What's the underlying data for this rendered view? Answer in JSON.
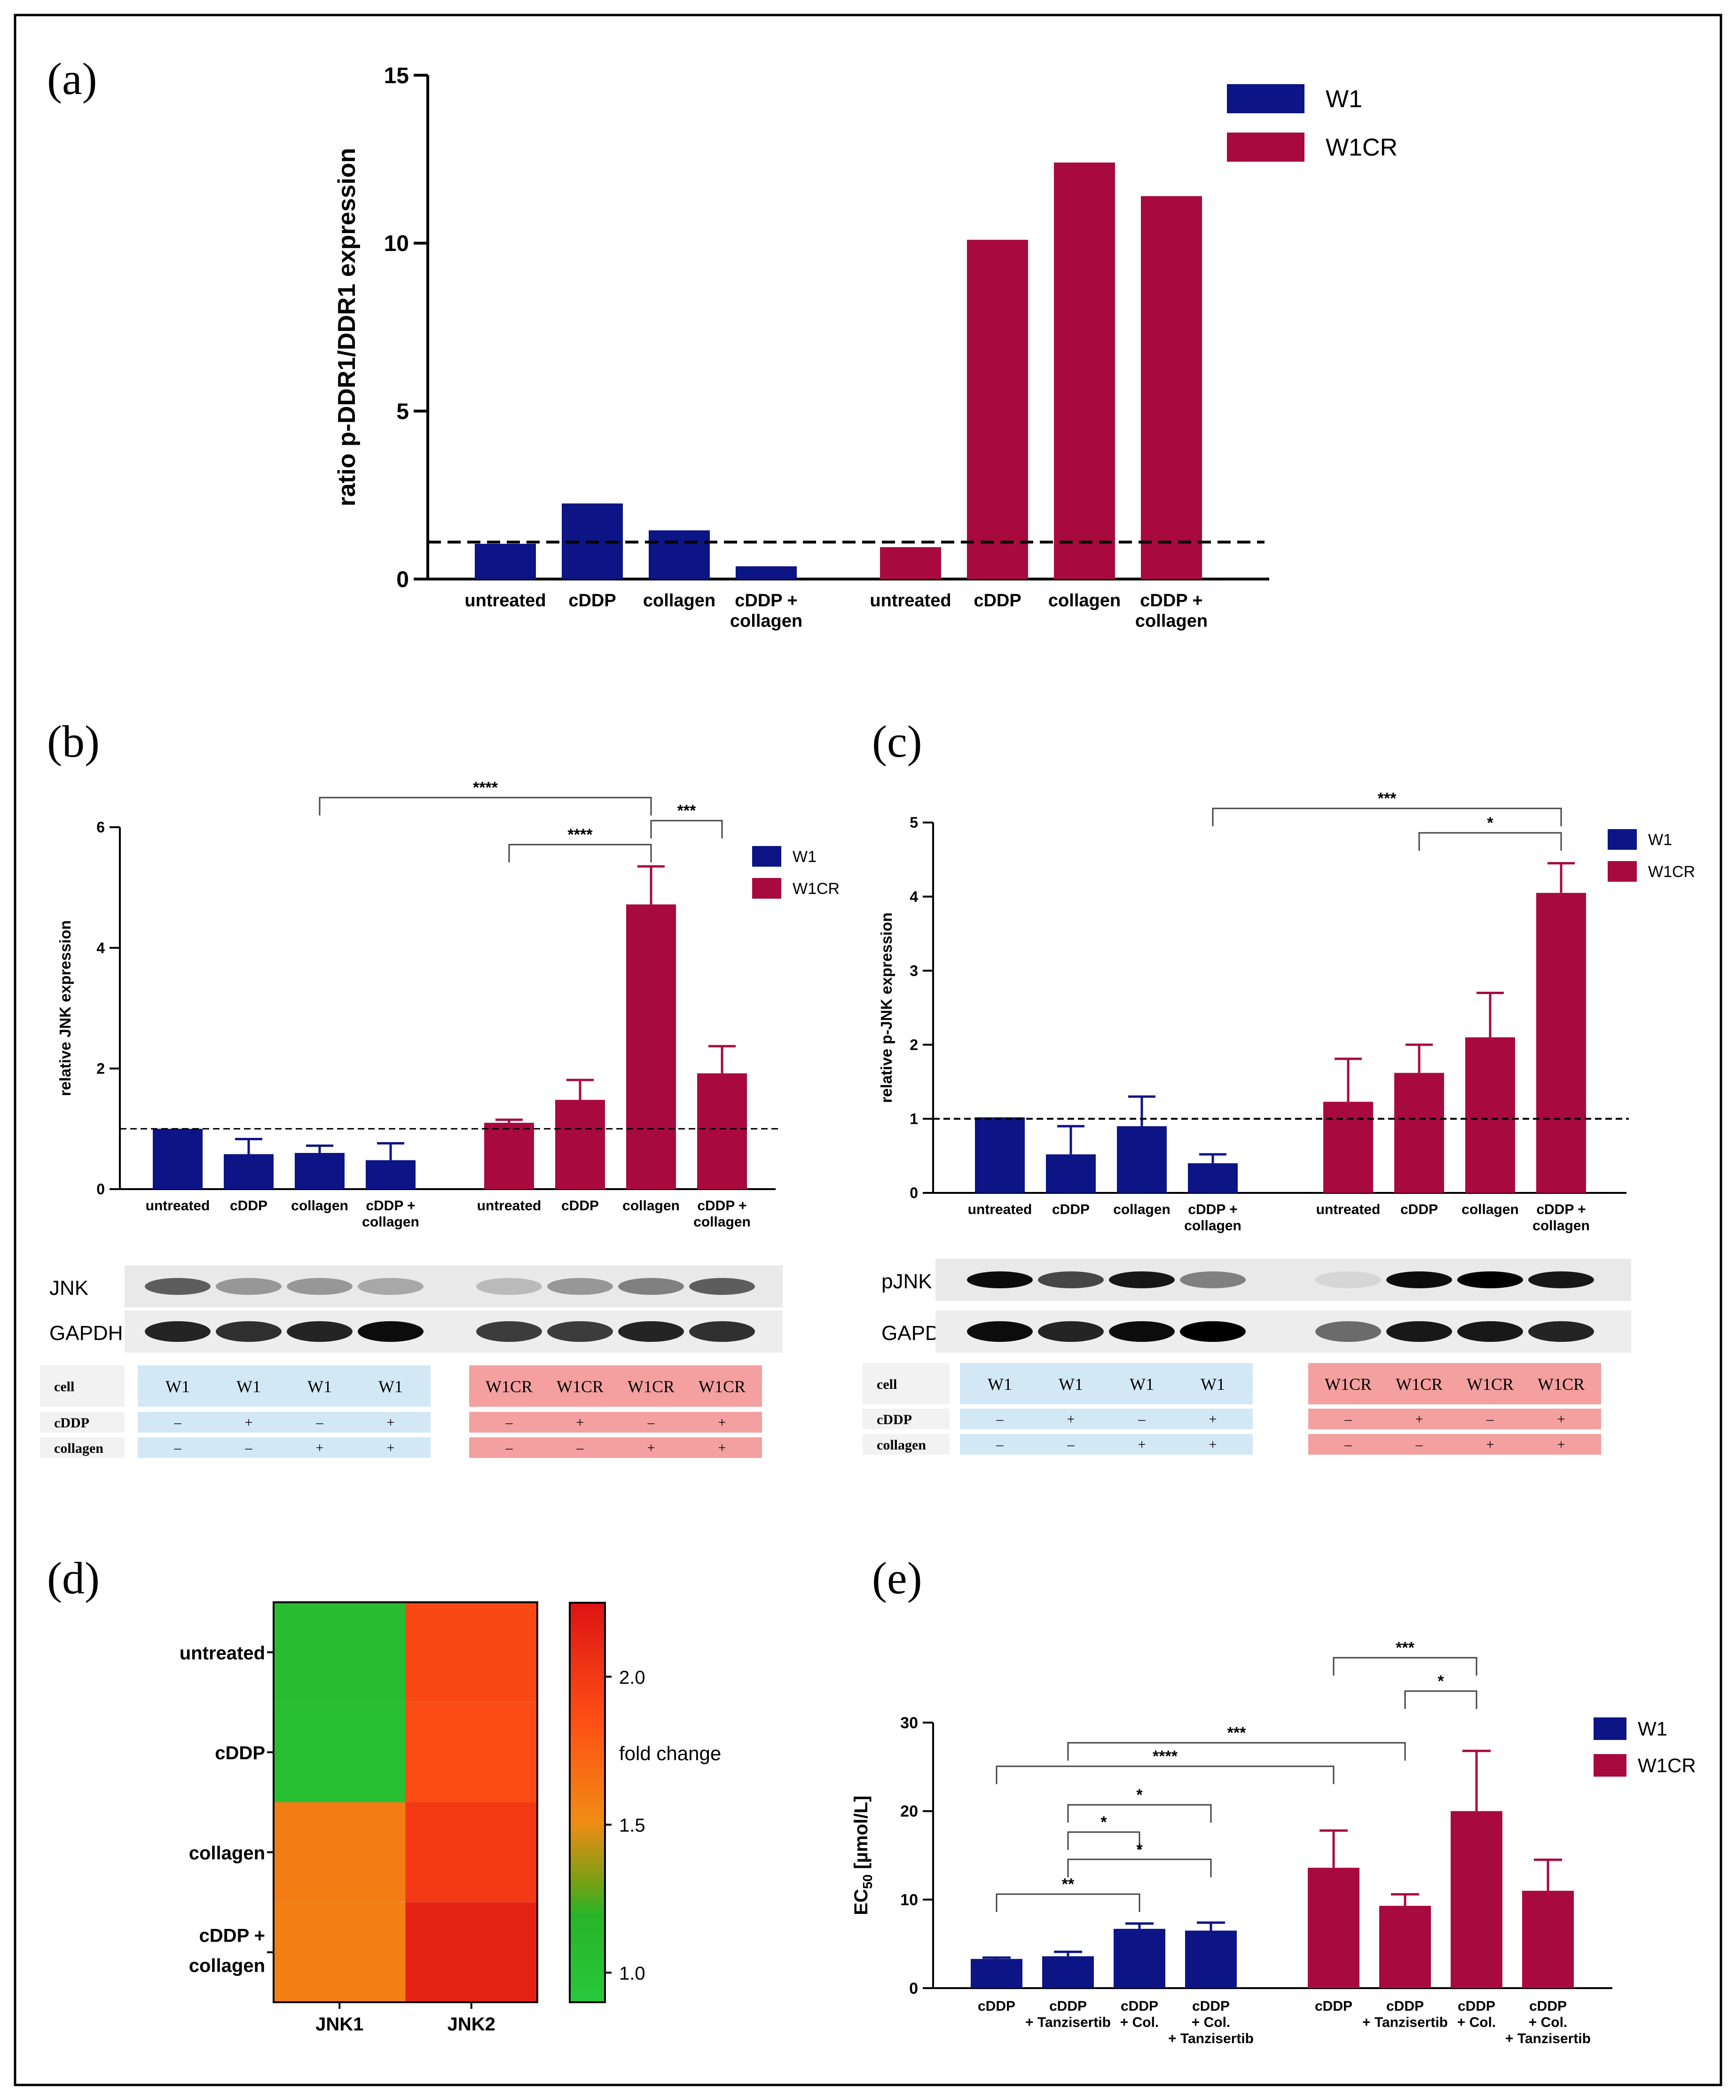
{
  "colors": {
    "w1": "#0d1486",
    "w1cr": "#a80a40",
    "w1_table": "#d3e8f5",
    "w1cr_table": "#f4a0a0",
    "header_table": "#f2f2f2"
  },
  "chart_data": [
    {
      "panel": "(a)",
      "type": "bar",
      "ylabel": "ratio p-DDR1/DDR1 expression",
      "ylim": [
        0,
        15
      ],
      "yticks": [
        "0",
        "5",
        "10",
        "15"
      ],
      "categories": [
        "untreated",
        "cDDP",
        "collagen",
        "cDDP + collagen"
      ],
      "series": [
        {
          "name": "W1",
          "values": [
            1.05,
            2.25,
            1.45,
            0.38
          ]
        },
        {
          "name": "W1CR",
          "values": [
            0.95,
            10.1,
            12.4,
            11.4
          ]
        }
      ],
      "reference_line": 1.1
    },
    {
      "panel": "(b)",
      "type": "bar",
      "ylabel": "relative JNK expression",
      "ylim": [
        0,
        6
      ],
      "yticks": [
        "0",
        "2",
        "4",
        "6"
      ],
      "categories": [
        "untreated",
        "cDDP",
        "collagen",
        "cDDP + collagen"
      ],
      "series": [
        {
          "name": "W1",
          "values": [
            1.0,
            0.58,
            0.6,
            0.48
          ],
          "errors": [
            0,
            0.25,
            0.12,
            0.28
          ]
        },
        {
          "name": "W1CR",
          "values": [
            1.1,
            1.48,
            4.72,
            1.92
          ],
          "errors": [
            0.05,
            0.33,
            0.63,
            0.45
          ]
        }
      ],
      "reference_line": 1.0,
      "significance": [
        "****",
        "****",
        "***"
      ],
      "blot": {
        "rows": [
          "JNK",
          "GAPDH"
        ],
        "table": {
          "row_labels": [
            "cell",
            "cDDP",
            "collagen"
          ],
          "cell": [
            "W1",
            "W1",
            "W1",
            "W1",
            "W1CR",
            "W1CR",
            "W1CR",
            "W1CR"
          ],
          "cddp": [
            "–",
            "+",
            "–",
            "+",
            "–",
            "+",
            "–",
            "+"
          ],
          "collagen": [
            "–",
            "–",
            "+",
            "+",
            "–",
            "–",
            "+",
            "+"
          ]
        }
      }
    },
    {
      "panel": "(c)",
      "type": "bar",
      "ylabel": "relative p-JNK expression",
      "ylim": [
        0,
        5
      ],
      "yticks": [
        "0",
        "1",
        "2",
        "3",
        "4",
        "5"
      ],
      "categories": [
        "untreated",
        "cDDP",
        "collagen",
        "cDDP + collagen"
      ],
      "series": [
        {
          "name": "W1",
          "values": [
            1.02,
            0.52,
            0.9,
            0.4
          ],
          "errors": [
            0,
            0.38,
            0.4,
            0.12
          ]
        },
        {
          "name": "W1CR",
          "values": [
            1.23,
            1.62,
            2.1,
            4.05
          ],
          "errors": [
            0.58,
            0.38,
            0.6,
            0.4
          ]
        }
      ],
      "reference_line": 1.0,
      "significance": [
        "***",
        "*"
      ],
      "blot": {
        "rows": [
          "pJNK",
          "GAPDH"
        ],
        "table": {
          "row_labels": [
            "cell",
            "cDDP",
            "collagen"
          ],
          "cell": [
            "W1",
            "W1",
            "W1",
            "W1",
            "W1CR",
            "W1CR",
            "W1CR",
            "W1CR"
          ],
          "cddp": [
            "–",
            "+",
            "–",
            "+",
            "–",
            "+",
            "–",
            "+"
          ],
          "collagen": [
            "–",
            "–",
            "+",
            "+",
            "–",
            "–",
            "+",
            "+"
          ]
        }
      }
    },
    {
      "panel": "(d)",
      "type": "heatmap",
      "rows": [
        "untreated",
        "cDDP",
        "collagen",
        "cDDP + collagen"
      ],
      "columns": [
        "JNK1",
        "JNK2"
      ],
      "values": [
        [
          1.08,
          1.9
        ],
        [
          1.05,
          1.88
        ],
        [
          1.6,
          2.0
        ],
        [
          1.58,
          2.15
        ]
      ],
      "colorbar_label": "fold change",
      "colorbar_ticks": [
        "1.0",
        "1.5",
        "2.0"
      ],
      "colorbar_range": [
        0.9,
        2.25
      ]
    },
    {
      "panel": "(e)",
      "type": "bar",
      "ylabel_main": "EC",
      "ylabel_sub": "50",
      "ylabel_unit": " [µmol/L]",
      "ylim": [
        0,
        30
      ],
      "yticks": [
        "0",
        "10",
        "20",
        "30"
      ],
      "categories": [
        [
          "cDDP"
        ],
        [
          "cDDP",
          "+ Tanzisertib"
        ],
        [
          "cDDP",
          "+ Col."
        ],
        [
          "cDDP",
          "+ Col.",
          "+ Tanzisertib"
        ]
      ],
      "series": [
        {
          "name": "W1",
          "values": [
            3.3,
            3.6,
            6.7,
            6.5
          ],
          "errors": [
            0.15,
            0.5,
            0.6,
            0.9
          ]
        },
        {
          "name": "W1CR",
          "values": [
            13.6,
            9.3,
            20.0,
            11.0
          ],
          "errors": [
            4.2,
            1.3,
            6.8,
            3.5
          ]
        }
      ],
      "significance": [
        "***",
        "*",
        "****",
        "***",
        "*",
        "*",
        "*",
        "**"
      ]
    }
  ]
}
